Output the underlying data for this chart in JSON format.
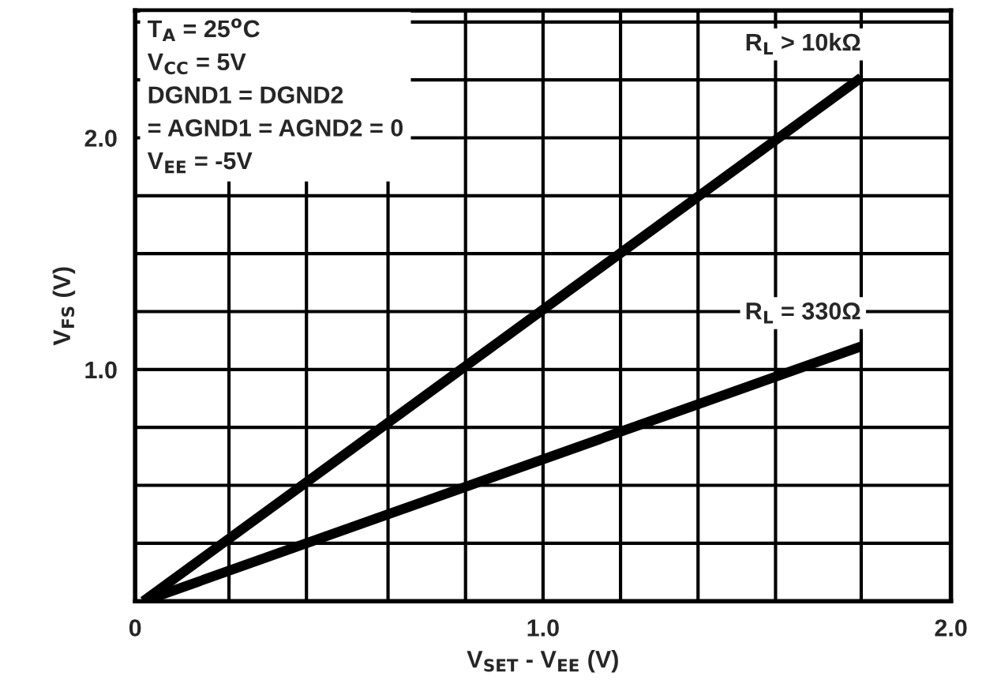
{
  "chart_data": {
    "type": "line",
    "xlabel": "V$_{SET}$ - V$_{EE}$ (V)",
    "ylabel": "V$_{FS}$ (V)",
    "annotations": [
      "T$_{A}$ = 25$^{o}$C\nV$_{CC}$ = 5V\nDGND1 = DGND2\n= AGND1 = AGND2 = 0\nV$_{EE}$ = -5V"
    ],
    "series": [
      {
        "name": "R$_{L}$ > 10kΩ",
        "color": "#000000",
        "values": [
          0,
          2.26
        ]
      },
      {
        "name": "R$_{L}$ = 330Ω",
        "color": "#000000",
        "values": [
          0,
          1.1
        ]
      }
    ],
    "x": [
      0.02,
      1.78
    ],
    "xlim": [
      0,
      2.0
    ],
    "ylim": [
      0,
      2.55
    ],
    "xticks": [
      0,
      {
        "value": 0.23,
        "label": null
      },
      {
        "value": 0.42,
        "label": null
      },
      {
        "value": 0.62,
        "label": null
      },
      {
        "value": 0.81,
        "label": null
      },
      {
        "value": 1.0,
        "label": "1.0"
      },
      {
        "value": 1.19,
        "label": null
      },
      {
        "value": 1.38,
        "label": null
      },
      {
        "value": 1.57,
        "label": null
      },
      {
        "value": 1.78,
        "label": null
      },
      {
        "value": 2.0,
        "label": "2.0"
      }
    ],
    "yticks": [
      {
        "value": 0.25,
        "label": null
      },
      {
        "value": 0.5,
        "label": null
      },
      {
        "value": 0.75,
        "label": null
      },
      {
        "value": 1.0,
        "label": "1.0"
      },
      {
        "value": 1.25,
        "label": null
      },
      {
        "value": 1.5,
        "label": null
      },
      {
        "value": 1.75,
        "label": null
      },
      {
        "value": 2.0,
        "label": "2.0"
      },
      {
        "value": 2.25,
        "label": null
      },
      {
        "value": 2.5,
        "label": null
      }
    ],
    "grid": true,
    "marker": "none",
    "line_style": "solid"
  }
}
